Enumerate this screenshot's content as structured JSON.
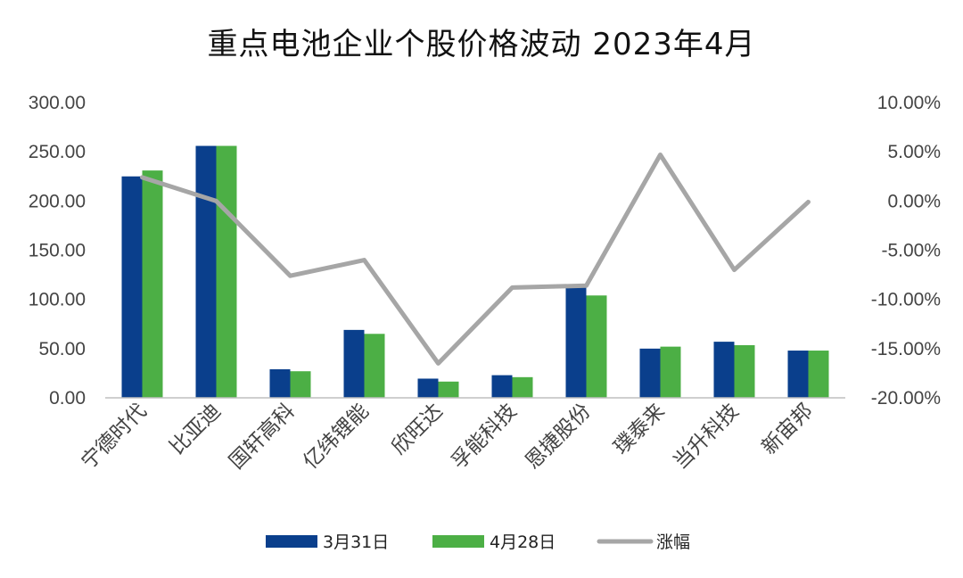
{
  "chart_data": {
    "type": "bar",
    "title": "重点电池企业个股价格波动 2023年4月",
    "categories": [
      "宁德时代",
      "比亚迪",
      "国轩高科",
      "亿纬锂能",
      "欣旺达",
      "孚能科技",
      "恩捷股份",
      "璞泰来",
      "当升科技",
      "新宙邦"
    ],
    "series": [
      {
        "name": "3月31日",
        "kind": "bar",
        "axis": "left",
        "color": "#0a3f8c",
        "values": [
          225,
          256,
          29,
          69,
          19.5,
          23,
          113,
          50,
          57,
          48
        ]
      },
      {
        "name": "4月28日",
        "kind": "bar",
        "axis": "left",
        "color": "#4caf45",
        "values": [
          231,
          256,
          27,
          65,
          16.5,
          21,
          104,
          52,
          53.5,
          48
        ]
      },
      {
        "name": "涨幅",
        "kind": "line",
        "axis": "right",
        "color": "#a6a6a6",
        "values": [
          2.4,
          0.0,
          -7.6,
          -6.0,
          -16.5,
          -8.8,
          -8.6,
          4.7,
          -7.0,
          -0.1
        ]
      }
    ],
    "y_left": {
      "min": 0,
      "max": 300,
      "step": 50,
      "ticks": [
        "0.00",
        "50.00",
        "100.00",
        "150.00",
        "200.00",
        "250.00",
        "300.00"
      ]
    },
    "y_right": {
      "min": -20,
      "max": 10,
      "step": 5,
      "ticks": [
        "-20.00%",
        "-15.00%",
        "-10.00%",
        "-5.00%",
        "0.00%",
        "5.00%",
        "10.00%"
      ]
    },
    "grid": false,
    "legend_position": "bottom"
  }
}
